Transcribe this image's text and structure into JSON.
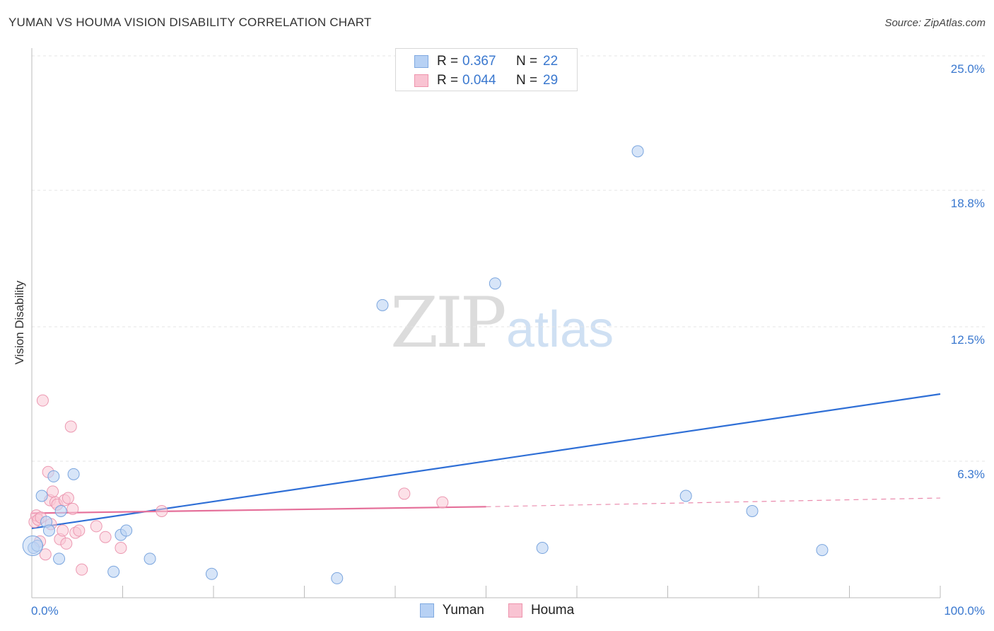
{
  "header": {
    "title": "YUMAN VS HOUMA VISION DISABILITY CORRELATION CHART",
    "source": "Source: ZipAtlas.com"
  },
  "watermark": {
    "zip": "ZIP",
    "atlas": "atlas"
  },
  "legend": {
    "rows": [
      {
        "r_label": "R =",
        "r_value": "0.367",
        "n_label": "N =",
        "n_value": "22",
        "color": "#b7d1f4",
        "border": "#7fa9e0"
      },
      {
        "r_label": "R =",
        "r_value": "0.044",
        "n_label": "N =",
        "n_value": "29",
        "color": "#f9c3d2",
        "border": "#ee94ad"
      }
    ]
  },
  "bottom_legend": {
    "items": [
      "Yuman",
      "Houma"
    ]
  },
  "colors": {
    "yuman_fill": "#bcd4f4",
    "yuman_stroke": "#7aa5de",
    "yuman_line": "#2f6fd6",
    "houma_fill": "#f9c8d6",
    "houma_stroke": "#ec98b1",
    "houma_line": "#e5709a",
    "tick_text": "#3a78cf",
    "grid": "#e4e4e4"
  },
  "chart_data": {
    "type": "scatter",
    "title": "YUMAN VS HOUMA VISION DISABILITY CORRELATION CHART",
    "xlabel": "",
    "ylabel": "Vision Disability",
    "xlim": [
      0,
      100
    ],
    "ylim": [
      0,
      25.0
    ],
    "x_tick_labels": [
      "0.0%",
      "100.0%"
    ],
    "y_ticks": [
      6.3,
      12.5,
      18.8,
      25.0
    ],
    "y_tick_labels": [
      "6.3%",
      "12.5%",
      "18.8%",
      "25.0%"
    ],
    "grid": true,
    "legend_position": "top-center",
    "series": [
      {
        "name": "Yuman",
        "r": 0.367,
        "n": 22,
        "points": [
          [
            0.2,
            2.3
          ],
          [
            0.6,
            2.4
          ],
          [
            1.1,
            4.7
          ],
          [
            1.6,
            3.5
          ],
          [
            1.9,
            3.1
          ],
          [
            2.4,
            5.6
          ],
          [
            3.0,
            1.8
          ],
          [
            3.2,
            4.0
          ],
          [
            4.6,
            5.7
          ],
          [
            9.0,
            1.2
          ],
          [
            9.8,
            2.9
          ],
          [
            10.4,
            3.1
          ],
          [
            13.0,
            1.8
          ],
          [
            19.8,
            1.1
          ],
          [
            33.6,
            0.9
          ],
          [
            38.6,
            13.5
          ],
          [
            51.0,
            14.5
          ],
          [
            56.2,
            2.3
          ],
          [
            66.7,
            20.6
          ],
          [
            72.0,
            4.7
          ],
          [
            79.3,
            4.0
          ],
          [
            87.0,
            2.2
          ]
        ],
        "trend": {
          "x": [
            0,
            100
          ],
          "y": [
            3.2,
            9.4
          ]
        }
      },
      {
        "name": "Houma",
        "r": 0.044,
        "n": 29,
        "points": [
          [
            0.3,
            3.5
          ],
          [
            0.5,
            3.8
          ],
          [
            0.7,
            3.6
          ],
          [
            0.9,
            2.6
          ],
          [
            1.2,
            9.1
          ],
          [
            1.5,
            2.0
          ],
          [
            1.8,
            5.8
          ],
          [
            2.0,
            4.5
          ],
          [
            2.3,
            4.9
          ],
          [
            2.6,
            4.4
          ],
          [
            2.8,
            4.3
          ],
          [
            3.1,
            2.7
          ],
          [
            3.4,
            3.1
          ],
          [
            3.6,
            4.5
          ],
          [
            3.8,
            2.5
          ],
          [
            4.0,
            4.6
          ],
          [
            4.3,
            7.9
          ],
          [
            4.5,
            4.1
          ],
          [
            4.8,
            3.0
          ],
          [
            5.2,
            3.1
          ],
          [
            5.5,
            1.3
          ],
          [
            7.1,
            3.3
          ],
          [
            8.1,
            2.8
          ],
          [
            9.8,
            2.3
          ],
          [
            14.3,
            4.0
          ],
          [
            41.0,
            4.8
          ],
          [
            45.2,
            4.4
          ],
          [
            2.1,
            3.4
          ],
          [
            1.0,
            3.7
          ]
        ],
        "trend": {
          "x": [
            0,
            50
          ],
          "y": [
            3.9,
            4.2
          ]
        },
        "trend_dashed": {
          "x": [
            50,
            100
          ],
          "y": [
            4.2,
            4.6
          ]
        }
      }
    ]
  }
}
